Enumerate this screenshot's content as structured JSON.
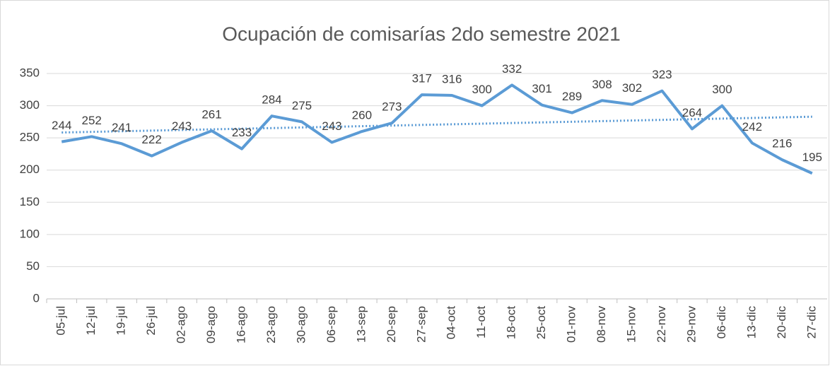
{
  "chart_data": {
    "type": "line",
    "title": "Ocupación de comisarías 2do semestre 2021",
    "categories": [
      "05-jul",
      "12-jul",
      "19-jul",
      "26-jul",
      "02-ago",
      "09-ago",
      "16-ago",
      "23-ago",
      "30-ago",
      "06-sep",
      "13-sep",
      "20-sep",
      "27-sep",
      "04-oct",
      "11-oct",
      "18-oct",
      "25-oct",
      "01-nov",
      "08-nov",
      "15-nov",
      "22-nov",
      "29-nov",
      "06-dic",
      "13-dic",
      "20-dic",
      "27-dic"
    ],
    "values": [
      244,
      252,
      241,
      222,
      243,
      261,
      233,
      284,
      275,
      243,
      260,
      273,
      317,
      316,
      300,
      332,
      301,
      289,
      308,
      302,
      323,
      264,
      300,
      242,
      216,
      195
    ],
    "color": "#5b9bd5",
    "trendline": "linear",
    "ylim": [
      0,
      350
    ],
    "yticks": [
      0,
      50,
      100,
      150,
      200,
      250,
      300,
      350
    ],
    "grid": true
  }
}
